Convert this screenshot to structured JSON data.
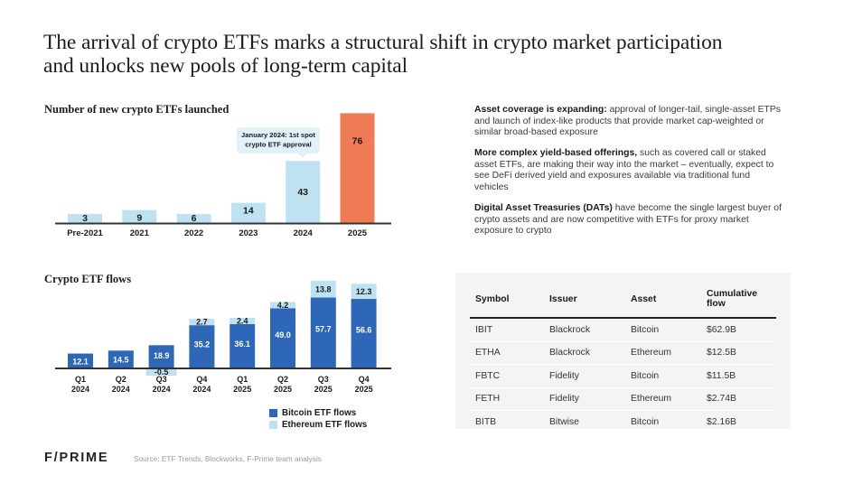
{
  "title": "The arrival of crypto ETFs marks a structural shift in crypto market participation and unlocks new pools of long-term capital",
  "colors": {
    "launch_bar": "#bfe2f2",
    "launch_highlight": "#ee7b56",
    "btc": "#2e67b8",
    "eth": "#bfe2f2",
    "callout_bg": "#e3f2fa",
    "axis": "#333333"
  },
  "chart_data": [
    {
      "type": "bar",
      "title": "Number of new crypto ETFs launched",
      "categories": [
        "Pre-2021",
        "2021",
        "2022",
        "2023",
        "2024",
        "2025"
      ],
      "values": [
        3,
        9,
        6,
        14,
        43,
        76
      ],
      "highlight_category": "2025",
      "annotation": {
        "category": "2024",
        "text_lines": [
          "January 2024: 1st spot",
          "crypto ETF approval"
        ]
      },
      "xlabel": "",
      "ylabel": "",
      "grid": false
    },
    {
      "type": "bar",
      "stacked": true,
      "title": "Crypto ETF flows",
      "categories": [
        [
          "Q1",
          "2024"
        ],
        [
          "Q2",
          "2024"
        ],
        [
          "Q3",
          "2024"
        ],
        [
          "Q4",
          "2024"
        ],
        [
          "Q1",
          "2025"
        ],
        [
          "Q2",
          "2025"
        ],
        [
          "Q3",
          "2025"
        ],
        [
          "Q4",
          "2025"
        ]
      ],
      "series": [
        {
          "name": "Bitcoin ETF flows",
          "values": [
            12.1,
            14.5,
            18.9,
            35.2,
            36.1,
            49.0,
            57.7,
            56.6
          ]
        },
        {
          "name": "Ethereum ETF flows",
          "values": [
            null,
            null,
            -0.5,
            2.7,
            2.4,
            4.2,
            13.8,
            12.3
          ]
        }
      ],
      "legend_position": "bottom-right",
      "grid": false
    }
  ],
  "bullets": [
    {
      "bold": "Asset coverage is expanding:",
      "text": " approval of longer-tail, single-asset ETPs and launch of index-like products that provide market cap-weighted or similar broad-based exposure"
    },
    {
      "bold": "More complex yield-based offerings,",
      "text": " such as covered call or staked asset ETFs, are making their way into the market – eventually, expect to see DeFi derived yield and exposures available via traditional fund vehicles"
    },
    {
      "bold": "Digital Asset Treasuries (DATs)",
      "text": " have become the single largest buyer of crypto assets and are now competitive with ETFs for proxy market exposure to crypto"
    }
  ],
  "table": {
    "headers": [
      "Symbol",
      "Issuer",
      "Asset",
      "Cumulative flow"
    ],
    "rows": [
      [
        "IBIT",
        "Blackrock",
        "Bitcoin",
        "$62.9B"
      ],
      [
        "ETHA",
        "Blackrock",
        "Ethereum",
        "$12.5B"
      ],
      [
        "FBTC",
        "Fidelity",
        "Bitcoin",
        "$11.5B"
      ],
      [
        "FETH",
        "Fidelity",
        "Ethereum",
        "$2.74B"
      ],
      [
        "BITB",
        "Bitwise",
        "Bitcoin",
        "$2.16B"
      ]
    ]
  },
  "footer": {
    "logo": "F/PRIME",
    "source": "Source: ETF Trends, Blockworks, F-Prime team analysis"
  }
}
